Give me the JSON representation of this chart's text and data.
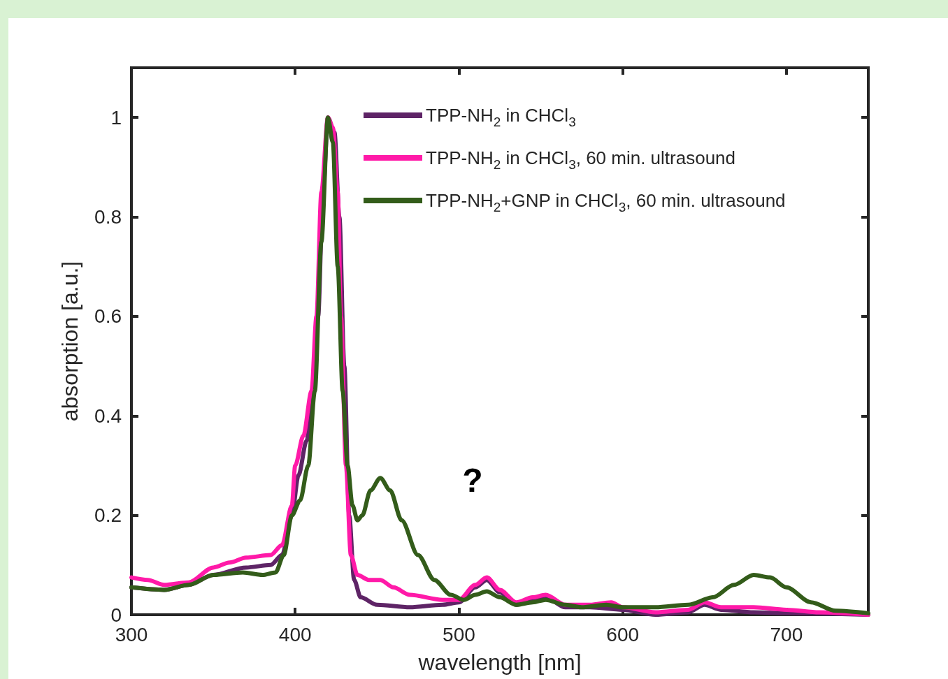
{
  "chart_data": {
    "type": "line",
    "xlabel": "wavelength [nm]",
    "ylabel": "absorption [a.u.]",
    "xlim": [
      300,
      750
    ],
    "xticks": [
      300,
      400,
      500,
      600,
      700
    ],
    "ylim": [
      0,
      1.1
    ],
    "yticks": [
      0,
      0.2,
      0.4,
      0.6,
      0.8,
      1
    ],
    "grid": false,
    "legend": "top right",
    "marker": "none",
    "line_style": "solid",
    "annotations": [
      "?"
    ],
    "series": [
      {
        "name": "TPP-NH$_{2}$ in CHCl$_{3}$",
        "color": "#5e2466",
        "x": [
          300,
          320,
          335,
          350,
          370,
          385,
          392,
          398,
          402,
          407,
          411,
          414,
          417,
          420,
          424,
          427,
          430,
          433,
          436,
          440,
          450,
          470,
          490,
          500,
          510,
          517,
          525,
          535,
          545,
          553,
          565,
          580,
          600,
          620,
          640,
          650,
          660,
          680,
          700,
          750
        ],
        "values": [
          0.055,
          0.05,
          0.06,
          0.08,
          0.095,
          0.1,
          0.12,
          0.2,
          0.28,
          0.35,
          0.45,
          0.6,
          0.85,
          1.0,
          0.97,
          0.8,
          0.5,
          0.2,
          0.07,
          0.035,
          0.02,
          0.015,
          0.02,
          0.025,
          0.055,
          0.07,
          0.045,
          0.02,
          0.03,
          0.035,
          0.015,
          0.015,
          0.01,
          0.0,
          0.005,
          0.02,
          0.01,
          0.005,
          0.003,
          0.0
        ]
      },
      {
        "name": "TPP-NH$_{2}$ in CHCl$_{3}$, 60 min. ultrasound",
        "color": "#ff1aa8",
        "x": [
          300,
          310,
          320,
          335,
          350,
          360,
          370,
          385,
          392,
          398,
          400,
          405,
          410,
          413,
          416,
          420,
          423,
          426,
          428,
          431,
          434,
          438,
          445,
          452,
          460,
          470,
          490,
          500,
          510,
          517,
          525,
          535,
          545,
          553,
          565,
          580,
          593,
          600,
          620,
          640,
          650,
          660,
          680,
          700,
          720,
          750
        ],
        "values": [
          0.075,
          0.07,
          0.06,
          0.065,
          0.095,
          0.105,
          0.115,
          0.12,
          0.14,
          0.22,
          0.3,
          0.36,
          0.45,
          0.6,
          0.85,
          1.0,
          0.98,
          0.85,
          0.6,
          0.3,
          0.12,
          0.08,
          0.07,
          0.07,
          0.055,
          0.04,
          0.03,
          0.03,
          0.06,
          0.075,
          0.05,
          0.025,
          0.035,
          0.04,
          0.02,
          0.02,
          0.025,
          0.015,
          0.005,
          0.01,
          0.025,
          0.015,
          0.015,
          0.01,
          0.005,
          0.0
        ]
      },
      {
        "name": "TPP-NH$_{2}$+GNP in CHCl$_{3}$, 60 min. ultrasound",
        "color": "#335c1a",
        "x": [
          300,
          320,
          335,
          350,
          368,
          380,
          388,
          393,
          398,
          403,
          408,
          412,
          416,
          420,
          423,
          426,
          429,
          432,
          435,
          438,
          441,
          446,
          452,
          458,
          465,
          475,
          485,
          495,
          503,
          510,
          517,
          525,
          535,
          545,
          553,
          565,
          575,
          590,
          600,
          620,
          640,
          655,
          668,
          680,
          690,
          700,
          715,
          730,
          750
        ],
        "values": [
          0.055,
          0.05,
          0.06,
          0.08,
          0.085,
          0.08,
          0.085,
          0.12,
          0.2,
          0.23,
          0.3,
          0.45,
          0.75,
          1.0,
          0.95,
          0.7,
          0.45,
          0.3,
          0.22,
          0.19,
          0.2,
          0.25,
          0.275,
          0.25,
          0.19,
          0.12,
          0.07,
          0.04,
          0.03,
          0.04,
          0.047,
          0.035,
          0.02,
          0.025,
          0.03,
          0.02,
          0.015,
          0.02,
          0.015,
          0.015,
          0.02,
          0.035,
          0.06,
          0.08,
          0.075,
          0.055,
          0.025,
          0.008,
          0.003
        ]
      }
    ]
  }
}
